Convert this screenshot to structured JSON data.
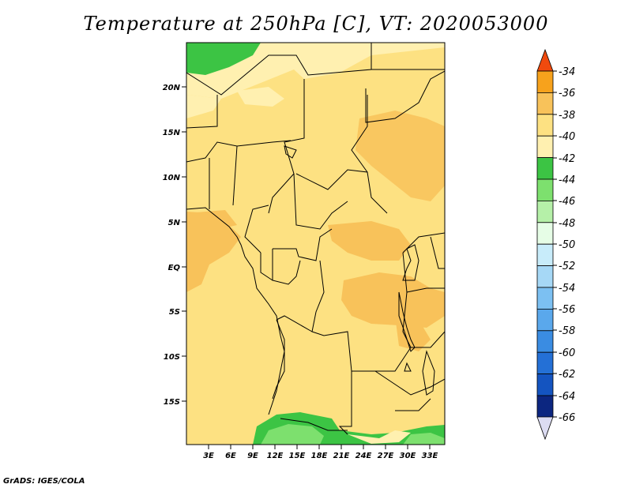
{
  "title": "Temperature at 250hPa [C], VT: 2020053000",
  "footer": "GrADS: IGES/COLA",
  "map": {
    "lat_labels": [
      "20N",
      "15N",
      "10N",
      "5N",
      "EQ",
      "5S",
      "10S",
      "15S"
    ],
    "lon_labels": [
      "3E",
      "6E",
      "9E",
      "12E",
      "15E",
      "18E",
      "21E",
      "24E",
      "27E",
      "30E",
      "33E"
    ],
    "regions": [
      {
        "name": "background",
        "value_range": "-42 to -40",
        "color": "#fde182"
      },
      {
        "name": "north-cool-band",
        "value_range": "-44 to -42",
        "color": "#fff0b0"
      },
      {
        "name": "northwest-green",
        "value_range": "-46 to -44",
        "color": "#3cc444"
      },
      {
        "name": "gulf-warm",
        "value_range": "-40 to -38",
        "color": "#f8c25a"
      },
      {
        "name": "congo-warm",
        "value_range": "-40 to -38",
        "color": "#f8c25a"
      },
      {
        "name": "south-green",
        "value_range": "-46 to -44",
        "color": "#3cc444"
      },
      {
        "name": "south-light-green",
        "value_range": "-48 to -46",
        "color": "#7de06e"
      }
    ]
  },
  "colorbar": {
    "labels": [
      "-34",
      "-36",
      "-38",
      "-40",
      "-42",
      "-44",
      "-46",
      "-48",
      "-50",
      "-52",
      "-54",
      "-56",
      "-58",
      "-60",
      "-62",
      "-64",
      "-66"
    ],
    "colors": [
      "#f04a0e",
      "#f7a21c",
      "#f8c25a",
      "#fde182",
      "#fff0b0",
      "#3cc444",
      "#7de06e",
      "#b5f0a8",
      "#e6fde6",
      "#c8ecfa",
      "#a6d8f6",
      "#7cc0f2",
      "#5aa8ec",
      "#3a8ce2",
      "#2470d6",
      "#1454c0",
      "#0c2680",
      "#dcdcf2"
    ]
  }
}
